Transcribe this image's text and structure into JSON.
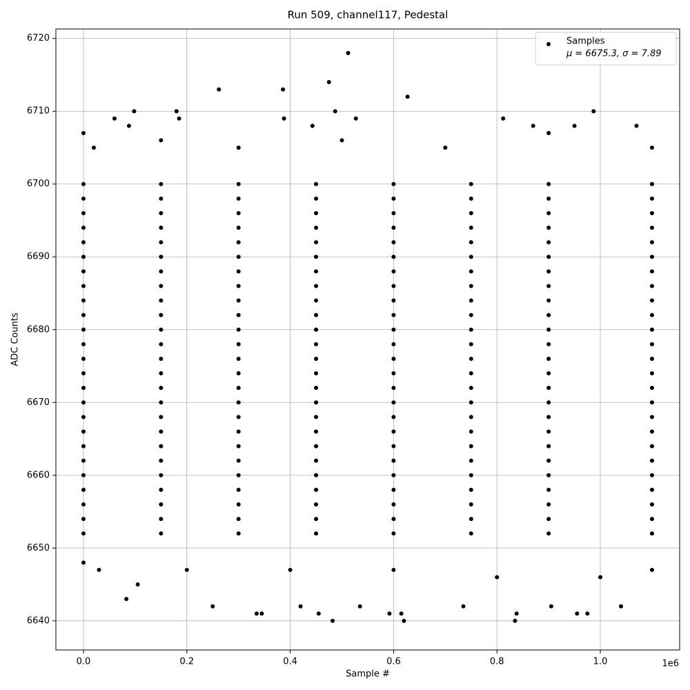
{
  "chart_data": {
    "type": "scatter",
    "title": "Run 509, channel117, Pedestal",
    "x_label": "Sample #",
    "y_label": "ADC Counts",
    "x_offset_label": "1e6",
    "legend_note": "μ = 6675.3, σ = 7.89",
    "legend_position": "upper right",
    "grid": true,
    "xlim": [
      -53400,
      1153500
    ],
    "ylim": [
      6636.0,
      6721.3
    ],
    "xticks": [
      {
        "value": 0,
        "label": "0.0"
      },
      {
        "value": 200000,
        "label": "0.2"
      },
      {
        "value": 400000,
        "label": "0.4"
      },
      {
        "value": 600000,
        "label": "0.6"
      },
      {
        "value": 800000,
        "label": "0.8"
      },
      {
        "value": 1000000,
        "label": "1.0"
      }
    ],
    "yticks": [
      6640,
      6650,
      6660,
      6670,
      6680,
      6690,
      6700,
      6710,
      6720
    ],
    "series": [
      {
        "name": "Samples",
        "color": "#000000",
        "x": [
          0,
          0,
          60000,
          83000,
          88000,
          98000,
          105000,
          180000,
          185000,
          250000,
          262000,
          335000,
          345000,
          386000,
          388000,
          420000,
          443000,
          455000,
          475000,
          482000,
          487000,
          512000,
          527000,
          535000,
          592000,
          615000,
          620000,
          627000,
          735000,
          812000,
          835000,
          838000,
          870000,
          905000,
          950000,
          955000,
          975000,
          987000,
          1040000,
          1070000,
          1100000,
          1100000,
          20000,
          150000,
          300000,
          500000,
          700000,
          900000,
          30000,
          200000,
          400000,
          600000,
          800000,
          1000000,
          0,
          150000,
          300000,
          450000,
          600000,
          750000,
          900000,
          1100000,
          0,
          150000,
          300000,
          450000,
          600000,
          750000,
          900000,
          1100000,
          0,
          150000,
          300000,
          450000,
          600000,
          750000,
          900000,
          1100000,
          0,
          150000,
          300000,
          450000,
          600000,
          750000,
          900000,
          1100000,
          0,
          150000,
          300000,
          450000,
          600000,
          750000,
          900000,
          1100000,
          0,
          150000,
          300000,
          450000,
          600000,
          750000,
          900000,
          1100000,
          0,
          150000,
          300000,
          450000,
          600000,
          750000,
          900000,
          1100000,
          0,
          150000,
          300000,
          450000,
          600000,
          750000,
          900000,
          1100000,
          0,
          150000,
          300000,
          450000,
          600000,
          750000,
          900000,
          1100000,
          0,
          150000,
          300000,
          450000,
          600000,
          750000,
          900000,
          1100000,
          0,
          150000,
          300000,
          450000,
          600000,
          750000,
          900000,
          1100000,
          0,
          150000,
          300000,
          450000,
          600000,
          750000,
          900000,
          1100000,
          0,
          150000,
          300000,
          450000,
          600000,
          750000,
          900000,
          1100000,
          0,
          150000,
          300000,
          450000,
          600000,
          750000,
          900000,
          1100000,
          0,
          150000,
          300000,
          450000,
          600000,
          750000,
          900000,
          1100000,
          0,
          150000,
          300000,
          450000,
          600000,
          750000,
          900000,
          1100000,
          0,
          150000,
          300000,
          450000,
          600000,
          750000,
          900000,
          1100000,
          0,
          150000,
          300000,
          450000,
          600000,
          750000,
          900000,
          1100000,
          0,
          150000,
          300000,
          450000,
          600000,
          750000,
          900000,
          1100000,
          0,
          150000,
          300000,
          450000,
          600000,
          750000,
          900000,
          1100000,
          0,
          150000,
          300000,
          450000,
          600000,
          750000,
          900000,
          1100000,
          0,
          150000,
          300000,
          450000,
          600000,
          750000,
          900000,
          1100000,
          0,
          150000,
          300000,
          450000,
          600000,
          750000,
          900000,
          1100000,
          0,
          150000,
          300000,
          450000,
          600000,
          750000,
          900000,
          1100000,
          0,
          150000,
          300000,
          450000,
          600000,
          750000,
          900000,
          1100000
        ],
        "values": [
          6707,
          6648,
          6709,
          6643,
          6708,
          6710,
          6645,
          6710,
          6709,
          6642,
          6713,
          6641,
          6641,
          6713,
          6709,
          6642,
          6708,
          6641,
          6714,
          6640,
          6710,
          6718,
          6709,
          6642,
          6641,
          6641,
          6640,
          6712,
          6642,
          6709,
          6640,
          6641,
          6708,
          6642,
          6708,
          6641,
          6641,
          6710,
          6642,
          6708,
          6705,
          6647,
          6705,
          6706,
          6705,
          6706,
          6705,
          6707,
          6647,
          6647,
          6647,
          6647,
          6646,
          6646,
          6652,
          6652,
          6652,
          6652,
          6652,
          6652,
          6652,
          6652,
          6654,
          6654,
          6654,
          6654,
          6654,
          6654,
          6654,
          6654,
          6656,
          6656,
          6656,
          6656,
          6656,
          6656,
          6656,
          6656,
          6658,
          6658,
          6658,
          6658,
          6658,
          6658,
          6658,
          6658,
          6660,
          6660,
          6660,
          6660,
          6660,
          6660,
          6660,
          6660,
          6662,
          6662,
          6662,
          6662,
          6662,
          6662,
          6662,
          6662,
          6664,
          6664,
          6664,
          6664,
          6664,
          6664,
          6664,
          6664,
          6666,
          6666,
          6666,
          6666,
          6666,
          6666,
          6666,
          6666,
          6668,
          6668,
          6668,
          6668,
          6668,
          6668,
          6668,
          6668,
          6670,
          6670,
          6670,
          6670,
          6670,
          6670,
          6670,
          6670,
          6672,
          6672,
          6672,
          6672,
          6672,
          6672,
          6672,
          6672,
          6674,
          6674,
          6674,
          6674,
          6674,
          6674,
          6674,
          6674,
          6676,
          6676,
          6676,
          6676,
          6676,
          6676,
          6676,
          6676,
          6678,
          6678,
          6678,
          6678,
          6678,
          6678,
          6678,
          6678,
          6680,
          6680,
          6680,
          6680,
          6680,
          6680,
          6680,
          6680,
          6682,
          6682,
          6682,
          6682,
          6682,
          6682,
          6682,
          6682,
          6684,
          6684,
          6684,
          6684,
          6684,
          6684,
          6684,
          6684,
          6686,
          6686,
          6686,
          6686,
          6686,
          6686,
          6686,
          6686,
          6688,
          6688,
          6688,
          6688,
          6688,
          6688,
          6688,
          6688,
          6690,
          6690,
          6690,
          6690,
          6690,
          6690,
          6690,
          6690,
          6692,
          6692,
          6692,
          6692,
          6692,
          6692,
          6692,
          6692,
          6694,
          6694,
          6694,
          6694,
          6694,
          6694,
          6694,
          6694,
          6696,
          6696,
          6696,
          6696,
          6696,
          6696,
          6696,
          6696,
          6698,
          6698,
          6698,
          6698,
          6698,
          6698,
          6698,
          6698,
          6700,
          6700,
          6700,
          6700,
          6700,
          6700,
          6700,
          6700
        ]
      }
    ]
  }
}
